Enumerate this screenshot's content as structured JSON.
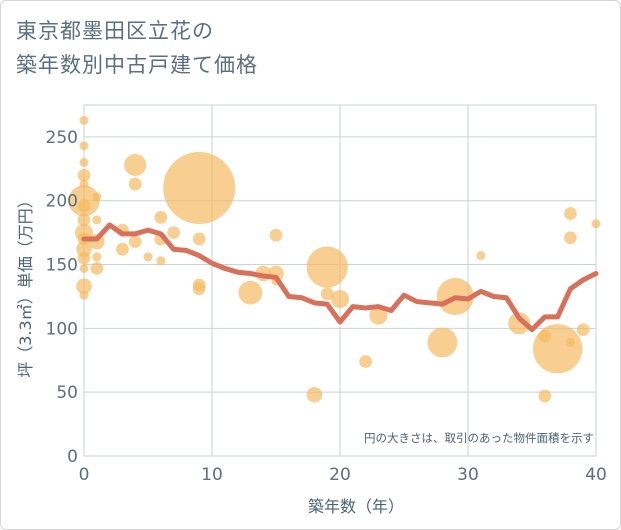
{
  "header": {
    "title": "東京都墨田区立花の\n築年数別中古戸建て価格"
  },
  "chart_data": {
    "type": "scatter",
    "xlabel": "築年数（年）",
    "ylabel": "坪（3.3㎡）単価（万円）",
    "xlim": [
      0,
      40
    ],
    "ylim": [
      0,
      275
    ],
    "x_ticks": [
      0,
      10,
      20,
      30,
      40
    ],
    "y_ticks": [
      0,
      50,
      100,
      150,
      200,
      250
    ],
    "grid": true,
    "note": "円の大きさは、取引のあった物件面積を示す",
    "colors": {
      "bubble": "#f5b85c",
      "line": "#d9705a",
      "grid": "#c4d3de",
      "text": "#5a6f80"
    },
    "bubbles": [
      {
        "x": 0,
        "y": 263,
        "size": 1
      },
      {
        "x": 0,
        "y": 243,
        "size": 1
      },
      {
        "x": 0,
        "y": 230,
        "size": 1
      },
      {
        "x": 0,
        "y": 220,
        "size": 2
      },
      {
        "x": 0,
        "y": 213,
        "size": 1
      },
      {
        "x": 0,
        "y": 200,
        "size": 12
      },
      {
        "x": 0,
        "y": 196,
        "size": 2
      },
      {
        "x": 0,
        "y": 185,
        "size": 2
      },
      {
        "x": 0,
        "y": 175,
        "size": 4
      },
      {
        "x": 0,
        "y": 170,
        "size": 2
      },
      {
        "x": 0,
        "y": 162,
        "size": 3
      },
      {
        "x": 0,
        "y": 155,
        "size": 2
      },
      {
        "x": 0,
        "y": 147,
        "size": 1
      },
      {
        "x": 0,
        "y": 133,
        "size": 3
      },
      {
        "x": 0,
        "y": 126,
        "size": 1
      },
      {
        "x": 1,
        "y": 203,
        "size": 1
      },
      {
        "x": 1,
        "y": 185,
        "size": 1
      },
      {
        "x": 1,
        "y": 168,
        "size": 3
      },
      {
        "x": 1,
        "y": 156,
        "size": 1
      },
      {
        "x": 1,
        "y": 147,
        "size": 2
      },
      {
        "x": 3,
        "y": 177,
        "size": 2
      },
      {
        "x": 3,
        "y": 162,
        "size": 2
      },
      {
        "x": 4,
        "y": 228,
        "size": 6
      },
      {
        "x": 4,
        "y": 213,
        "size": 2
      },
      {
        "x": 4,
        "y": 168,
        "size": 2
      },
      {
        "x": 5,
        "y": 156,
        "size": 1
      },
      {
        "x": 6,
        "y": 187,
        "size": 2
      },
      {
        "x": 6,
        "y": 170,
        "size": 2
      },
      {
        "x": 6,
        "y": 153,
        "size": 1
      },
      {
        "x": 7,
        "y": 175,
        "size": 2
      },
      {
        "x": 9,
        "y": 210,
        "size": 64
      },
      {
        "x": 9,
        "y": 170,
        "size": 2
      },
      {
        "x": 9,
        "y": 134,
        "size": 2
      },
      {
        "x": 9,
        "y": 131,
        "size": 2
      },
      {
        "x": 13,
        "y": 128,
        "size": 7
      },
      {
        "x": 14,
        "y": 143,
        "size": 3
      },
      {
        "x": 15,
        "y": 173,
        "size": 2
      },
      {
        "x": 15,
        "y": 143,
        "size": 3
      },
      {
        "x": 15,
        "y": 137,
        "size": 1
      },
      {
        "x": 18,
        "y": 48,
        "size": 3
      },
      {
        "x": 19,
        "y": 148,
        "size": 21
      },
      {
        "x": 19,
        "y": 127,
        "size": 2
      },
      {
        "x": 20,
        "y": 123,
        "size": 4
      },
      {
        "x": 22,
        "y": 74,
        "size": 2
      },
      {
        "x": 23,
        "y": 110,
        "size": 4
      },
      {
        "x": 28,
        "y": 89,
        "size": 11
      },
      {
        "x": 29,
        "y": 125,
        "size": 17
      },
      {
        "x": 31,
        "y": 157,
        "size": 1
      },
      {
        "x": 34,
        "y": 104,
        "size": 6
      },
      {
        "x": 36,
        "y": 94,
        "size": 2
      },
      {
        "x": 36,
        "y": 47,
        "size": 2
      },
      {
        "x": 37,
        "y": 84,
        "size": 30
      },
      {
        "x": 38,
        "y": 190,
        "size": 2
      },
      {
        "x": 38,
        "y": 171,
        "size": 2
      },
      {
        "x": 38,
        "y": 89,
        "size": 1
      },
      {
        "x": 39,
        "y": 99,
        "size": 2
      },
      {
        "x": 40,
        "y": 182,
        "size": 1
      }
    ],
    "trend": {
      "x": [
        0,
        1,
        2,
        3,
        4,
        5,
        6,
        7,
        8,
        9,
        10,
        11,
        12,
        13,
        14,
        15,
        16,
        17,
        18,
        19,
        20,
        21,
        22,
        23,
        24,
        25,
        26,
        27,
        28,
        29,
        30,
        31,
        32,
        33,
        34,
        35,
        36,
        37,
        38,
        39,
        40
      ],
      "y": [
        170,
        170,
        181,
        174,
        174,
        177,
        174,
        162,
        161,
        157,
        151,
        147,
        144,
        143,
        141,
        140,
        125,
        124,
        120,
        119,
        105,
        117,
        116,
        117,
        114,
        126,
        121,
        120,
        119,
        124,
        123,
        129,
        125,
        124,
        108,
        99,
        109,
        109,
        131,
        138,
        143
      ]
    }
  }
}
